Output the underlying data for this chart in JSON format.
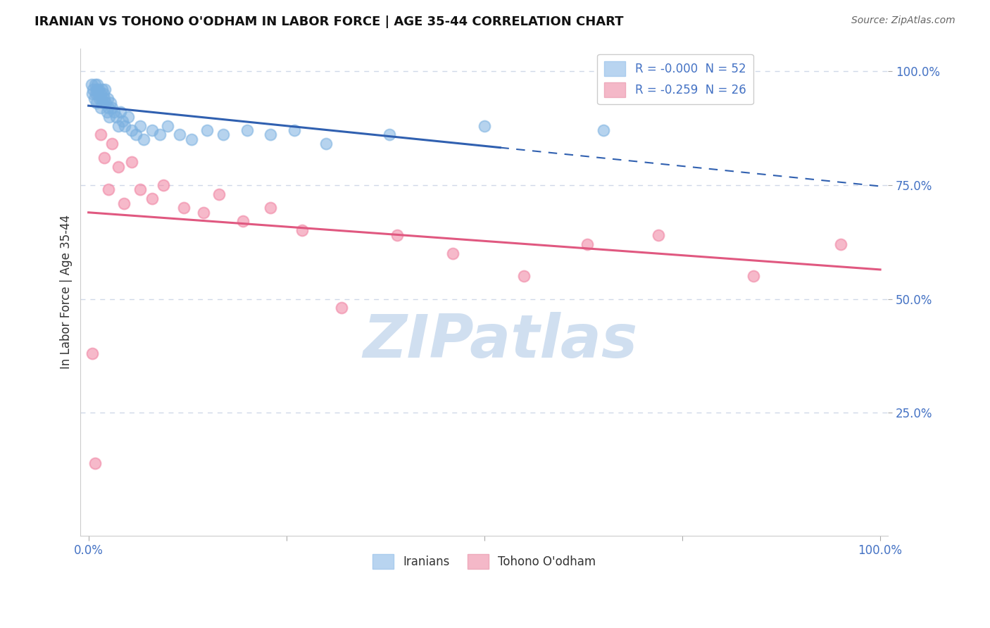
{
  "title": "IRANIAN VS TOHONO O'ODHAM IN LABOR FORCE | AGE 35-44 CORRELATION CHART",
  "source": "Source: ZipAtlas.com",
  "ylabel": "In Labor Force | Age 35-44",
  "legend_iranian_label": "R = -0.000  N = 52",
  "legend_tohono_label": "R = -0.259  N = 26",
  "legend_iranian_color": "#b8d4f0",
  "legend_tohono_color": "#f4b8c8",
  "iranian_dot_color": "#7ab0e0",
  "tohono_dot_color": "#f080a0",
  "trendline_iranian_color": "#3060b0",
  "trendline_tohono_color": "#e05880",
  "watermark_text": "ZIPatlas",
  "watermark_color": "#d0dff0",
  "background_color": "#ffffff",
  "grid_color": "#d0d8e8",
  "tick_label_color": "#4472c4",
  "title_color": "#111111",
  "ylabel_color": "#333333",
  "source_color": "#666666",
  "iranian_x": [
    0.004,
    0.005,
    0.006,
    0.007,
    0.008,
    0.009,
    0.01,
    0.01,
    0.011,
    0.012,
    0.013,
    0.014,
    0.015,
    0.015,
    0.016,
    0.017,
    0.018,
    0.019,
    0.02,
    0.021,
    0.022,
    0.023,
    0.024,
    0.025,
    0.026,
    0.028,
    0.03,
    0.032,
    0.035,
    0.038,
    0.04,
    0.043,
    0.046,
    0.05,
    0.055,
    0.06,
    0.065,
    0.07,
    0.08,
    0.09,
    0.1,
    0.115,
    0.13,
    0.15,
    0.17,
    0.2,
    0.23,
    0.26,
    0.3,
    0.38,
    0.5,
    0.65
  ],
  "iranian_y": [
    0.97,
    0.95,
    0.96,
    0.94,
    0.97,
    0.95,
    0.96,
    0.93,
    0.97,
    0.95,
    0.96,
    0.94,
    0.95,
    0.92,
    0.94,
    0.96,
    0.93,
    0.95,
    0.94,
    0.96,
    0.93,
    0.91,
    0.94,
    0.92,
    0.9,
    0.93,
    0.92,
    0.91,
    0.9,
    0.88,
    0.91,
    0.89,
    0.88,
    0.9,
    0.87,
    0.86,
    0.88,
    0.85,
    0.87,
    0.86,
    0.88,
    0.86,
    0.85,
    0.87,
    0.86,
    0.87,
    0.86,
    0.87,
    0.84,
    0.86,
    0.88,
    0.87
  ],
  "tohono_x": [
    0.005,
    0.008,
    0.015,
    0.02,
    0.025,
    0.03,
    0.038,
    0.045,
    0.055,
    0.065,
    0.08,
    0.095,
    0.12,
    0.145,
    0.165,
    0.195,
    0.23,
    0.27,
    0.32,
    0.39,
    0.46,
    0.55,
    0.63,
    0.72,
    0.84,
    0.95
  ],
  "tohono_y": [
    0.38,
    0.14,
    0.86,
    0.81,
    0.74,
    0.84,
    0.79,
    0.71,
    0.8,
    0.74,
    0.72,
    0.75,
    0.7,
    0.69,
    0.73,
    0.67,
    0.7,
    0.65,
    0.48,
    0.64,
    0.6,
    0.55,
    0.62,
    0.64,
    0.55,
    0.62
  ],
  "xlim": [
    0.0,
    1.0
  ],
  "ylim": [
    0.0,
    1.05
  ],
  "yticks": [
    0.25,
    0.5,
    0.75,
    1.0
  ],
  "ytick_labels": [
    "25.0%",
    "50.0%",
    "75.0%",
    "100.0%"
  ],
  "xtick_labels_show": [
    "0.0%",
    "100.0%"
  ],
  "dot_size": 130,
  "dot_alpha": 0.55,
  "dot_linewidth": 1.5
}
